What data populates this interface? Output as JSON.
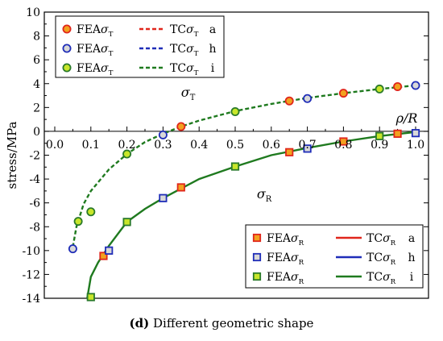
{
  "caption": {
    "panel": "(d)",
    "text": "Different geometric shape"
  },
  "chart_data": {
    "type": "scatter",
    "title": "",
    "ylabel": "stress/MPa",
    "xlabel_prefix": "ρ",
    "xlabel_suffix": "/R",
    "xlim": [
      0.0,
      1.0
    ],
    "ylim": [
      -14,
      10
    ],
    "grid": false,
    "xticks": [
      0.0,
      0.1,
      0.2,
      0.3,
      0.4,
      0.5,
      0.6,
      0.7,
      0.8,
      0.9,
      1.0
    ],
    "xtick_labels": [
      "0.0",
      "0.1",
      "0.2",
      "0.3",
      "0.4",
      "0.5",
      "0.6",
      "0.7",
      "0.8",
      "0.9",
      "1.0"
    ],
    "yticks": [
      -14,
      -12,
      -10,
      -8,
      -6,
      -4,
      -2,
      0,
      2,
      4,
      6,
      8,
      10
    ],
    "ytick_labels": [
      "-14",
      "-12",
      "-10",
      "-8",
      "-6",
      "-4",
      "-2",
      "0",
      "2",
      "4",
      "6",
      "8",
      "10"
    ],
    "annotations": [
      {
        "id": "sigma_T",
        "base": "σ",
        "sub": "T",
        "x": 0.35,
        "y": 2.9
      },
      {
        "id": "sigma_R",
        "base": "σ",
        "sub": "R",
        "x": 0.56,
        "y": -5.6
      }
    ],
    "legend_top": {
      "placement": "top-left",
      "entries": [
        {
          "fea_text": "FEA",
          "tc_text": "TC",
          "sym": "σ",
          "sub": "T",
          "tag": "a"
        },
        {
          "fea_text": "FEA",
          "tc_text": "TC",
          "sym": "σ",
          "sub": "T",
          "tag": "h"
        },
        {
          "fea_text": "FEA",
          "tc_text": "TC",
          "sym": "σ",
          "sub": "T",
          "tag": "i"
        }
      ]
    },
    "legend_bottom": {
      "placement": "bottom-right",
      "entries": [
        {
          "fea_text": "FEA",
          "tc_text": "TC",
          "sym": "σ",
          "sub": "R",
          "tag": "a"
        },
        {
          "fea_text": "FEA",
          "tc_text": "TC",
          "sym": "σ",
          "sub": "R",
          "tag": "h"
        },
        {
          "fea_text": "FEA",
          "tc_text": "TC",
          "sym": "σ",
          "sub": "R",
          "tag": "i"
        }
      ]
    },
    "series": [
      {
        "kind": "fea",
        "shape": "circle",
        "stress": "T",
        "tag": "a",
        "fill": "#f2a11f",
        "edge": "#e0261b",
        "x": [
          0.35,
          0.65,
          0.8,
          0.95
        ],
        "y": [
          0.4,
          2.55,
          3.2,
          3.75
        ]
      },
      {
        "kind": "fea",
        "shape": "circle",
        "stress": "T",
        "tag": "h",
        "fill": "#d8d8d8",
        "edge": "#1f2db8",
        "x": [
          0.05,
          0.3,
          0.7,
          1.0
        ],
        "y": [
          -9.85,
          -0.3,
          2.75,
          3.85
        ]
      },
      {
        "kind": "fea",
        "shape": "circle",
        "stress": "T",
        "tag": "i",
        "fill": "#c8e62a",
        "edge": "#2a7a2a",
        "x": [
          0.065,
          0.1,
          0.2,
          0.5,
          0.9
        ],
        "y": [
          -7.55,
          -6.75,
          -1.9,
          1.65,
          3.55
        ]
      },
      {
        "kind": "tc",
        "stress": "T",
        "tag": "a",
        "color": "#e0261b",
        "dash": true,
        "x": [],
        "y": []
      },
      {
        "kind": "tc",
        "stress": "T",
        "tag": "h",
        "color": "#1f2db8",
        "dash": true,
        "x": [],
        "y": []
      },
      {
        "kind": "tc",
        "stress": "T",
        "tag": "i",
        "color": "#1f7a1f",
        "dash": true,
        "x": [
          0.05,
          0.06,
          0.08,
          0.1,
          0.15,
          0.2,
          0.25,
          0.3,
          0.35,
          0.4,
          0.5,
          0.6,
          0.7,
          0.8,
          0.9,
          1.0
        ],
        "y": [
          -9.7,
          -8.0,
          -6.1,
          -5.0,
          -3.2,
          -1.9,
          -0.9,
          -0.2,
          0.4,
          0.9,
          1.7,
          2.3,
          2.8,
          3.2,
          3.55,
          3.85
        ]
      },
      {
        "kind": "fea",
        "shape": "square",
        "stress": "R",
        "tag": "a",
        "fill": "#f2a11f",
        "edge": "#e0261b",
        "x": [
          0.135,
          0.35,
          0.65,
          0.8,
          0.95
        ],
        "y": [
          -10.45,
          -4.7,
          -1.75,
          -0.85,
          -0.2
        ]
      },
      {
        "kind": "fea",
        "shape": "square",
        "stress": "R",
        "tag": "h",
        "fill": "#d8d8d8",
        "edge": "#1f2db8",
        "x": [
          0.15,
          0.3,
          0.7,
          1.0
        ],
        "y": [
          -10.0,
          -5.6,
          -1.45,
          -0.15
        ]
      },
      {
        "kind": "fea",
        "shape": "square",
        "stress": "R",
        "tag": "i",
        "fill": "#c8e62a",
        "edge": "#2a7a2a",
        "x": [
          0.1,
          0.2,
          0.5,
          0.9
        ],
        "y": [
          -13.9,
          -7.6,
          -2.95,
          -0.4
        ]
      },
      {
        "kind": "tc",
        "stress": "R",
        "tag": "a",
        "color": "#e0261b",
        "dash": false,
        "x": [],
        "y": []
      },
      {
        "kind": "tc",
        "stress": "R",
        "tag": "h",
        "color": "#1f2db8",
        "dash": false,
        "x": [],
        "y": []
      },
      {
        "kind": "tc",
        "stress": "R",
        "tag": "i",
        "color": "#1f7a1f",
        "dash": false,
        "x": [
          0.09,
          0.1,
          0.12,
          0.15,
          0.2,
          0.25,
          0.3,
          0.35,
          0.4,
          0.5,
          0.6,
          0.7,
          0.8,
          0.9,
          1.0
        ],
        "y": [
          -14.0,
          -12.2,
          -11.0,
          -9.6,
          -7.6,
          -6.5,
          -5.6,
          -4.8,
          -4.0,
          -2.95,
          -2.0,
          -1.4,
          -0.85,
          -0.4,
          -0.05
        ]
      }
    ]
  }
}
